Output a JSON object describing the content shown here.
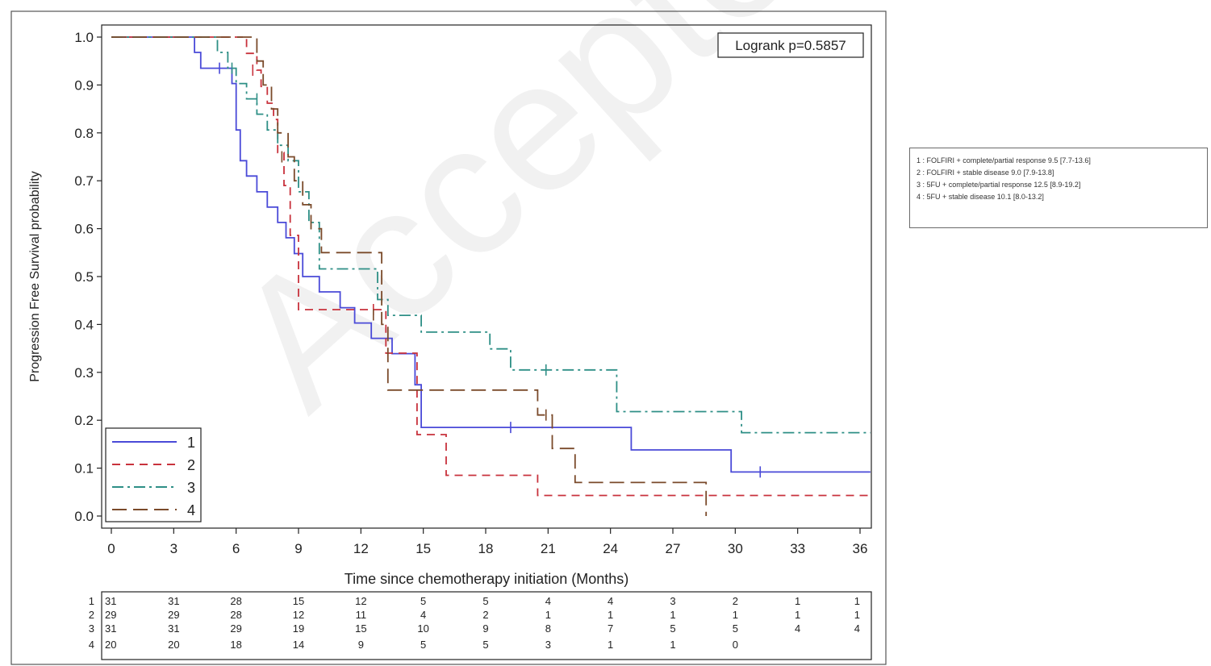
{
  "watermark": "Accepted Manuscript",
  "side_legend": [
    "1 : FOLFIRI + complete/partial response 9.5 [7.7-13.6]",
    "2 : FOLFIRI + stable disease 9.0 [7.9-13.8]",
    "3 : 5FU + complete/partial response 12.5 [8.9-19.2]",
    "4 : 5FU + stable disease 10.1 [8.0-13.2]"
  ],
  "chart_data": {
    "type": "line",
    "step": true,
    "title": "",
    "xlabel": "Time since chemotherapy initiation (Months)",
    "ylabel": "Progression Free Survival probability",
    "xlim": [
      0,
      36.5
    ],
    "ylim": [
      0,
      1.0
    ],
    "xticks": [
      0,
      3,
      6,
      9,
      12,
      15,
      18,
      21,
      24,
      27,
      30,
      33,
      36
    ],
    "yticks": [
      "0.0",
      "0.1",
      "0.2",
      "0.3",
      "0.4",
      "0.5",
      "0.6",
      "0.7",
      "0.8",
      "0.9",
      "1.0"
    ],
    "annotation": "Logrank p=0.5857",
    "legend_position": "bottom-left",
    "series": [
      {
        "name": "1",
        "color": "#4a4ad8",
        "dash": "",
        "x": [
          0,
          4.0,
          4.3,
          5.8,
          6.0,
          6.2,
          6.5,
          7.0,
          7.5,
          8.0,
          8.4,
          8.8,
          9.2,
          10.0,
          11.0,
          11.7,
          12.5,
          13.5,
          14.6,
          14.9,
          18.0,
          25.0,
          29.8,
          36.5
        ],
        "y": [
          1.0,
          0.968,
          0.935,
          0.903,
          0.806,
          0.742,
          0.71,
          0.677,
          0.645,
          0.613,
          0.581,
          0.548,
          0.5,
          0.468,
          0.435,
          0.403,
          0.371,
          0.339,
          0.274,
          0.185,
          0.185,
          0.138,
          0.092,
          0.092
        ],
        "censors": [
          [
            5.2,
            0.935
          ],
          [
            19.2,
            0.185
          ],
          [
            31.2,
            0.092
          ]
        ]
      },
      {
        "name": "2",
        "color": "#c8323c",
        "dash": "10,7",
        "x": [
          0,
          6.5,
          7.0,
          7.2,
          7.5,
          7.8,
          8.0,
          8.3,
          8.6,
          9.0,
          10.5,
          13.2,
          14.7,
          16.1,
          20.5,
          36.5
        ],
        "y": [
          1.0,
          0.966,
          0.931,
          0.897,
          0.862,
          0.828,
          0.759,
          0.69,
          0.586,
          0.431,
          0.431,
          0.34,
          0.17,
          0.085,
          0.043,
          0.043
        ],
        "censors": [
          [
            6.8,
            0.931
          ],
          [
            12.6,
            0.431
          ]
        ]
      },
      {
        "name": "3",
        "color": "#2e8f86",
        "dash": "14,5,3,5",
        "x": [
          0,
          5.1,
          5.6,
          6.0,
          6.5,
          7.0,
          7.5,
          8.0,
          8.5,
          9.0,
          9.5,
          10.0,
          12.8,
          13.3,
          14.9,
          18.2,
          19.2,
          24.3,
          30.3,
          36.5
        ],
        "y": [
          1.0,
          0.968,
          0.935,
          0.903,
          0.871,
          0.839,
          0.806,
          0.774,
          0.742,
          0.677,
          0.613,
          0.516,
          0.452,
          0.419,
          0.384,
          0.349,
          0.305,
          0.218,
          0.174,
          0.174
        ],
        "censors": [
          [
            5.8,
            0.935
          ],
          [
            7.0,
            0.871
          ],
          [
            20.9,
            0.305
          ]
        ]
      },
      {
        "name": "4",
        "color": "#7a4a2a",
        "dash": "18,8",
        "x": [
          0,
          7.0,
          7.3,
          7.7,
          8.0,
          8.5,
          8.8,
          9.2,
          9.6,
          10.1,
          13.0,
          13.3,
          14.9,
          20.5,
          21.2,
          22.3,
          28.6,
          28.6
        ],
        "y": [
          1.0,
          0.95,
          0.9,
          0.85,
          0.8,
          0.75,
          0.7,
          0.65,
          0.6,
          0.55,
          0.4,
          0.263,
          0.263,
          0.211,
          0.141,
          0.07,
          0.0,
          0.0
        ],
        "censors": [
          [
            8.2,
            0.75
          ],
          [
            12.6,
            0.42
          ],
          [
            20.9,
            0.211
          ]
        ]
      }
    ],
    "risk_table": {
      "rows": [
        {
          "label": "1",
          "values": [
            "31",
            "31",
            "28",
            "15",
            "12",
            "5",
            "5",
            "4",
            "4",
            "3",
            "2",
            "1",
            "1"
          ]
        },
        {
          "label": "2",
          "values": [
            "29",
            "29",
            "28",
            "12",
            "11",
            "4",
            "2",
            "1",
            "1",
            "1",
            "1",
            "1",
            "1"
          ]
        },
        {
          "label": "3",
          "values": [
            "31",
            "31",
            "29",
            "19",
            "15",
            "10",
            "9",
            "8",
            "7",
            "5",
            "5",
            "4",
            "4"
          ]
        },
        {
          "label": "4",
          "values": [
            "20",
            "20",
            "18",
            "14",
            "9",
            "5",
            "5",
            "3",
            "1",
            "1",
            "0",
            "",
            ""
          ]
        }
      ]
    }
  }
}
